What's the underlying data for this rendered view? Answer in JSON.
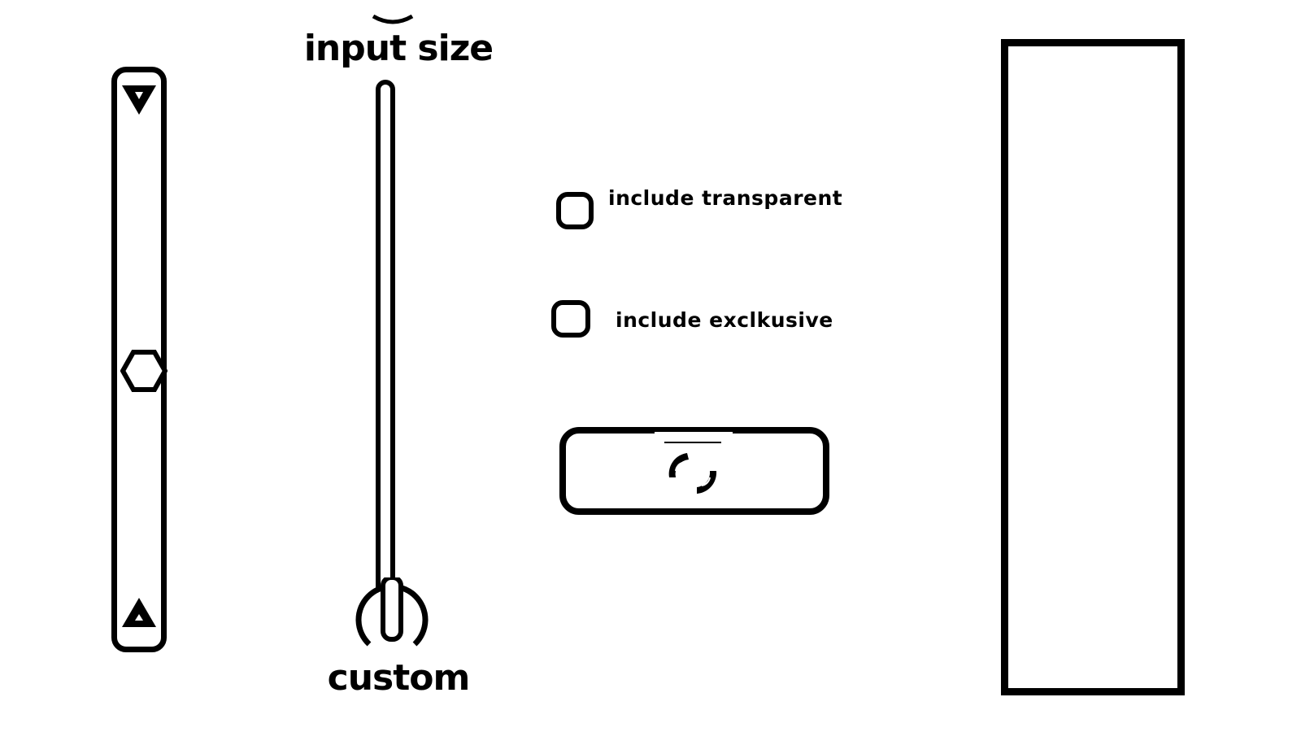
{
  "slider": {
    "title": "input size",
    "footer": "custom",
    "value_fraction": 0.0
  },
  "options": [
    {
      "label": "include transparent",
      "checked": false
    },
    {
      "label": "include exclkusive",
      "checked": false
    }
  ],
  "icons": {
    "scroll_up": "triangle-down-icon",
    "scroll_down": "triangle-up-icon",
    "scroll_thumb": "hexagon-icon",
    "refresh": "refresh-icon"
  },
  "colors": {
    "stroke": "#000000",
    "background": "#ffffff"
  }
}
